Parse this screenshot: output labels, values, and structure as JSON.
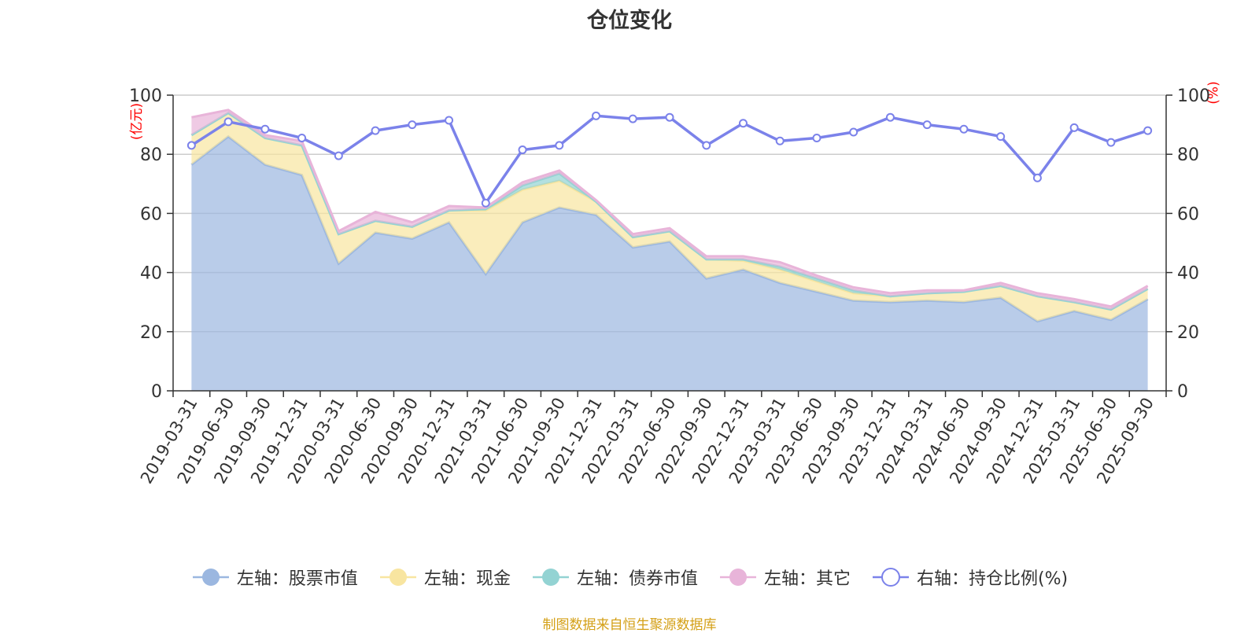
{
  "chart_data": {
    "type": "area",
    "title": "仓位变化",
    "left_unit": "(亿元)",
    "right_unit": "(%)",
    "ylim_left": [
      0,
      100
    ],
    "ylim_right": [
      0,
      100
    ],
    "y_ticks": [
      "0",
      "20",
      "40",
      "60",
      "80",
      "100"
    ],
    "categories": [
      "2019-03-31",
      "2019-06-30",
      "2019-09-30",
      "2019-12-31",
      "2020-03-31",
      "2020-06-30",
      "2020-09-30",
      "2020-12-31",
      "2021-03-31",
      "2021-06-30",
      "2021-09-30",
      "2021-12-31",
      "2022-03-31",
      "2022-06-30",
      "2022-09-30",
      "2022-12-31",
      "2023-03-31",
      "2023-06-30",
      "2023-09-30",
      "2023-12-31",
      "2024-03-31",
      "2024-06-30",
      "2024-09-30",
      "2024-12-31",
      "2025-03-31",
      "2025-06-30",
      "2025-09-30"
    ],
    "series": [
      {
        "name": "左轴：股票市值",
        "axis": "left",
        "kind": "area",
        "color": "#9bb7e0",
        "values": [
          76.5,
          86,
          76.5,
          73,
          43,
          53.5,
          51.5,
          57,
          39.5,
          57,
          62,
          59.5,
          48.5,
          50.5,
          38,
          41,
          36.5,
          33.5,
          30.5,
          30,
          30.5,
          30,
          31.5,
          23.5,
          27,
          24,
          31
        ]
      },
      {
        "name": "左轴：现金",
        "axis": "left",
        "kind": "area",
        "color": "#f8e5a0",
        "values": [
          10,
          8,
          9,
          10,
          10,
          4,
          4,
          4,
          21.5,
          11,
          9,
          4.5,
          3.5,
          3.5,
          6.5,
          3,
          4.5,
          3.5,
          2.5,
          2,
          2.5,
          3.5,
          4,
          8.5,
          3,
          3.5,
          3.5
        ]
      },
      {
        "name": "左轴：债券市值",
        "axis": "left",
        "kind": "area",
        "color": "#93d3d3",
        "values": [
          0,
          0,
          0,
          0,
          0,
          0,
          0,
          0,
          0.5,
          1.5,
          2.5,
          0,
          0,
          0,
          0,
          0.5,
          1,
          1,
          1,
          0,
          0,
          0,
          0,
          0,
          0,
          0,
          0
        ]
      },
      {
        "name": "左轴：其它",
        "axis": "left",
        "kind": "area",
        "color": "#e8b4d9",
        "values": [
          6,
          1,
          1,
          1.5,
          1,
          3,
          1.5,
          1.5,
          0.5,
          1,
          1,
          0.5,
          1,
          1,
          1,
          1,
          1.5,
          1,
          1,
          1,
          1,
          0.5,
          1,
          1,
          1,
          1,
          1
        ]
      },
      {
        "name": "右轴：持仓比例(%)",
        "axis": "right",
        "kind": "line",
        "color": "#7b82ea",
        "values": [
          83,
          91,
          88.5,
          85.5,
          79.5,
          88,
          90,
          91.5,
          63.5,
          81.5,
          83,
          93,
          92,
          92.5,
          83,
          90.5,
          84.5,
          85.5,
          87.5,
          92.5,
          90,
          88.5,
          86,
          72,
          89,
          84,
          88
        ]
      }
    ]
  },
  "footer": {
    "source": "制图数据来自恒生聚源数据库"
  }
}
